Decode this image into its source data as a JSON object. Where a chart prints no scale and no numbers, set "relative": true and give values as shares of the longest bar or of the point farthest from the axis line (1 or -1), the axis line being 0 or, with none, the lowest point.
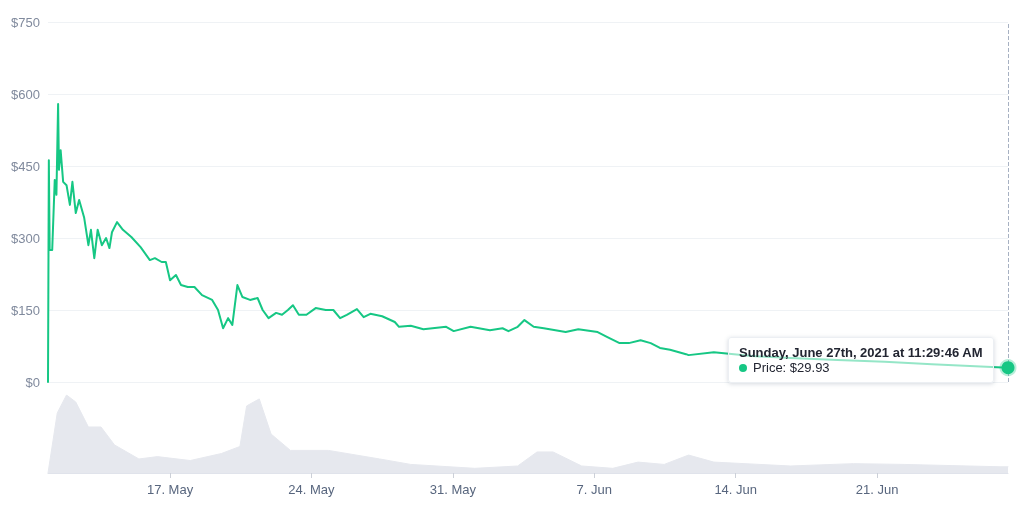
{
  "chart_data": [
    {
      "type": "line",
      "tick_labels": "y",
      "grid": "y",
      "marker": "none",
      "x": [
        "2021-05-10T23:00",
        "2021-05-11T00:00",
        "2021-05-11T01:00",
        "2021-05-11T04:00",
        "2021-05-11T07:00",
        "2021-05-11T09:00",
        "2021-05-11T11:00",
        "2021-05-11T12:00",
        "2021-05-11T14:00",
        "2021-05-11T17:00",
        "2021-05-11T21:00",
        "2021-05-12T01:00",
        "2021-05-12T04:00",
        "2021-05-12T08:00",
        "2021-05-12T12:00",
        "2021-05-12T18:00",
        "2021-05-12T23:00",
        "2021-05-13T02:00",
        "2021-05-13T06:00",
        "2021-05-13T10:00",
        "2021-05-13T15:00",
        "2021-05-13T20:00",
        "2021-05-14T00:00",
        "2021-05-14T03:00",
        "2021-05-14T09:00",
        "2021-05-14T16:00",
        "2021-05-15T02:00",
        "2021-05-15T13:00",
        "2021-05-16T00:00",
        "2021-05-16T06:00",
        "2021-05-16T14:00",
        "2021-05-16T19:00",
        "2021-05-17T00:00",
        "2021-05-17T07:00",
        "2021-05-17T13:00",
        "2021-05-17T21:00",
        "2021-05-18T05:00",
        "2021-05-18T14:00",
        "2021-05-19T02:00",
        "2021-05-19T09:00",
        "2021-05-19T15:00",
        "2021-05-19T21:00",
        "2021-05-20T02:00",
        "2021-05-20T08:00",
        "2021-05-20T14:00",
        "2021-05-20T23:00",
        "2021-05-21T08:00",
        "2021-05-21T14:00",
        "2021-05-21T21:00",
        "2021-05-22T06:00",
        "2021-05-22T13:00",
        "2021-05-22T20:00",
        "2021-05-23T02:00",
        "2021-05-23T09:00",
        "2021-05-23T18:00",
        "2021-05-24T05:00",
        "2021-05-24T17:00",
        "2021-05-25T02:00",
        "2021-05-25T10:00",
        "2021-05-25T18:00",
        "2021-05-26T06:00",
        "2021-05-26T14:00",
        "2021-05-26T22:00",
        "2021-05-27T12:00",
        "2021-05-28T03:00",
        "2021-05-28T08:00",
        "2021-05-28T22:00",
        "2021-05-29T13:00",
        "2021-05-30T16:00",
        "2021-05-31T01:00",
        "2021-05-31T21:00",
        "2021-06-01T20:00",
        "2021-06-02T11:00",
        "2021-06-02T18:00",
        "2021-06-03T05:00",
        "2021-06-03T13:00",
        "2021-06-04T00:00",
        "2021-06-04T12:00",
        "2021-06-05T14:00",
        "2021-06-06T05:00",
        "2021-06-07T04:00",
        "2021-06-07T15:00",
        "2021-06-08T06:00",
        "2021-06-08T17:00",
        "2021-06-09T07:00",
        "2021-06-09T19:00",
        "2021-06-10T06:00",
        "2021-06-10T18:00",
        "2021-06-11T13:00",
        "2021-06-11T16:00",
        "2021-06-12T22:00",
        "2021-06-14T19:00",
        "2021-06-16T17:00",
        "2021-06-19T01:00",
        "2021-06-21T09:00",
        "2021-06-23T17:00",
        "2021-06-27T11:29"
      ],
      "series": [
        {
          "color": "#16c784",
          "values": [
            0,
            462,
            275,
            275,
            421,
            390,
            579,
            442,
            483,
            417,
            410,
            369,
            417,
            352,
            379,
            342,
            285,
            317,
            258,
            317,
            285,
            300,
            279,
            312,
            333,
            317,
            302,
            281,
            254,
            258,
            250,
            250,
            212,
            223,
            202,
            198,
            198,
            181,
            171,
            150,
            112,
            133,
            119,
            202,
            177,
            171,
            175,
            150,
            133,
            144,
            140,
            150,
            160,
            140,
            140,
            154,
            150,
            150,
            133,
            140,
            152,
            135,
            142,
            137,
            125,
            115,
            117,
            110,
            115,
            106,
            115,
            108,
            112,
            106,
            115,
            129,
            115,
            112,
            104,
            110,
            104,
            94,
            81,
            81,
            87,
            81,
            71,
            67,
            58,
            56,
            62,
            54,
            50,
            46,
            42,
            37,
            29.93
          ]
        }
      ],
      "xlim": [
        "2021-05-10T23:00",
        "2021-06-27T11:29"
      ],
      "ylim": [
        0,
        750
      ],
      "yticks": [
        {
          "value": 0,
          "label": "$0"
        },
        {
          "value": 150,
          "label": "$150"
        },
        {
          "value": 300,
          "label": "$300"
        },
        {
          "value": 450,
          "label": "$450"
        },
        {
          "value": 600,
          "label": "$600"
        },
        {
          "value": 750,
          "label": "$750"
        }
      ],
      "ref_lines": [
        {
          "axis": "x",
          "value": "2021-06-27T11:29",
          "color": "#a7b1c2",
          "line_style": "dashed"
        }
      ],
      "annotations": [
        {
          "text": "Sunday, June 27th, 2021 at 11:29:46 AM",
          "x": "2021-06-27T11:29",
          "y": 29.93
        },
        "Price: $29.93"
      ]
    },
    {
      "type": "area",
      "relative": true,
      "tick_labels": "x",
      "marker": "none",
      "x": [
        "2021-05-10T23:00",
        "2021-05-11T10:00",
        "2021-05-11T21:00",
        "2021-05-12T08:00",
        "2021-05-12T23:00",
        "2021-05-13T14:00",
        "2021-05-14T06:00",
        "2021-05-15T11:00",
        "2021-05-16T09:00",
        "2021-05-18T00:00",
        "2021-05-19T13:00",
        "2021-05-20T11:00",
        "2021-05-20T19:00",
        "2021-05-21T10:00",
        "2021-05-22T00:00",
        "2021-05-22T23:00",
        "2021-05-24T20:00",
        "2021-05-27T09:00",
        "2021-05-28T22:00",
        "2021-06-01T02:00",
        "2021-06-03T05:00",
        "2021-06-04T04:00",
        "2021-06-04T23:00",
        "2021-06-06T09:00",
        "2021-06-07T22:00",
        "2021-06-09T04:00",
        "2021-06-10T11:00",
        "2021-06-11T16:00",
        "2021-06-12T22:00",
        "2021-06-16T17:00",
        "2021-06-19T20:00",
        "2021-06-22T08:00",
        "2021-06-27T02:00",
        "2021-06-27T11:29"
      ],
      "series": [
        {
          "color": "#e6e8ee",
          "values": [
            0,
            0.77,
            1,
            0.91,
            0.59,
            0.59,
            0.36,
            0.18,
            0.21,
            0.16,
            0.25,
            0.34,
            0.86,
            0.95,
            0.5,
            0.29,
            0.29,
            0.18,
            0.11,
            0.06,
            0.09,
            0.27,
            0.27,
            0.09,
            0.06,
            0.14,
            0.11,
            0.23,
            0.14,
            0.09,
            0.12,
            0.11,
            0.08,
            0.08
          ]
        }
      ],
      "xlim": [
        "2021-05-10T23:00",
        "2021-06-27T11:29"
      ],
      "xticks": [
        {
          "value": "2021-05-17",
          "label": "17. May"
        },
        {
          "value": "2021-05-24",
          "label": "24. May"
        },
        {
          "value": "2021-05-31",
          "label": "31. May"
        },
        {
          "value": "2021-06-07",
          "label": "7. Jun"
        },
        {
          "value": "2021-06-14",
          "label": "14. Jun"
        },
        {
          "value": "2021-06-21",
          "label": "21. Jun"
        }
      ]
    }
  ]
}
